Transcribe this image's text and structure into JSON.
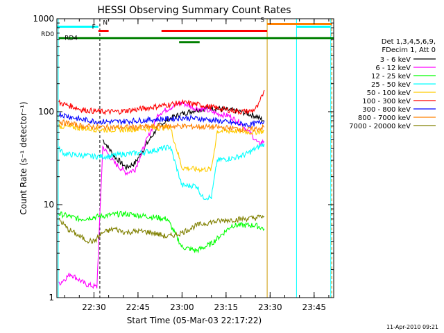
{
  "chart_data": {
    "type": "line",
    "title": "HESSI Observing Summary Count Rates",
    "xlabel": "Start Time (05-Mar-03 22:17:22)",
    "ylabel": "Count Rate (s⁻¹ detector⁻¹)",
    "yscale": "log",
    "ylim": [
      1,
      1000
    ],
    "xlim": [
      "22:17:22",
      "23:51:40"
    ],
    "x_ticks": [
      "22:30",
      "22:45",
      "23:00",
      "23:15",
      "23:30",
      "23:45"
    ],
    "y_ticks": [
      "1",
      "10",
      "100",
      "1000"
    ],
    "legend": {
      "header": [
        "Det 1,3,4,5,6,9,",
        "FDecim 1, Att 0"
      ],
      "placement": "right"
    },
    "series": [
      {
        "name": "3 - 6 keV",
        "color": "#000000",
        "points": [
          [
            "22:33:00",
            50
          ],
          [
            "22:37:00",
            33
          ],
          [
            "22:41:00",
            25
          ],
          [
            "22:44:00",
            28
          ],
          [
            "22:48:00",
            45
          ],
          [
            "22:52:00",
            70
          ],
          [
            "22:56:00",
            85
          ],
          [
            "23:00:00",
            95
          ],
          [
            "23:05:00",
            105
          ],
          [
            "23:10:00",
            110
          ],
          [
            "23:15:00",
            105
          ],
          [
            "23:20:00",
            100
          ],
          [
            "23:25:00",
            90
          ],
          [
            "23:28:00",
            80
          ]
        ]
      },
      {
        "name": "6 - 12 keV",
        "color": "#ff00ff",
        "points": [
          [
            "22:18:00",
            1.4
          ],
          [
            "22:22:00",
            1.8
          ],
          [
            "22:27:00",
            1.4
          ],
          [
            "22:31:00",
            1.3
          ],
          [
            "22:33:00",
            42
          ],
          [
            "22:37:00",
            28
          ],
          [
            "22:41:00",
            22
          ],
          [
            "22:44:00",
            24
          ],
          [
            "22:48:00",
            50
          ],
          [
            "22:52:00",
            95
          ],
          [
            "22:57:00",
            115
          ],
          [
            "23:00:00",
            125
          ],
          [
            "23:04:00",
            110
          ],
          [
            "23:08:00",
            105
          ],
          [
            "23:12:00",
            95
          ],
          [
            "23:16:00",
            90
          ],
          [
            "23:20:00",
            75
          ],
          [
            "23:24:00",
            55
          ],
          [
            "23:26:00",
            45
          ],
          [
            "23:28:00",
            48
          ]
        ]
      },
      {
        "name": "12 - 25 keV",
        "color": "#00ff00",
        "points": [
          [
            "22:18:00",
            8
          ],
          [
            "22:25:00",
            7
          ],
          [
            "22:32:00",
            7.5
          ],
          [
            "22:40:00",
            8
          ],
          [
            "22:48:00",
            7.5
          ],
          [
            "22:55:00",
            7
          ],
          [
            "23:00:00",
            3.5
          ],
          [
            "23:05:00",
            3.2
          ],
          [
            "23:10:00",
            3.8
          ],
          [
            "23:17:00",
            6
          ],
          [
            "23:25:00",
            6
          ],
          [
            "23:28:00",
            5.5
          ]
        ]
      },
      {
        "name": "25 - 50 keV",
        "color": "#00ffff",
        "points": [
          [
            "22:18:00",
            40
          ],
          [
            "22:20:00",
            35
          ],
          [
            "22:25:00",
            34
          ],
          [
            "22:30:00",
            33
          ],
          [
            "22:35:00",
            33
          ],
          [
            "22:40:00",
            35
          ],
          [
            "22:45:00",
            36
          ],
          [
            "22:50:00",
            38
          ],
          [
            "22:56:00",
            42
          ],
          [
            "23:00:00",
            16
          ],
          [
            "23:05:00",
            16
          ],
          [
            "23:07:00",
            12
          ],
          [
            "23:10:00",
            12
          ],
          [
            "23:12:00",
            30
          ],
          [
            "23:18:00",
            32
          ],
          [
            "23:22:00",
            35
          ],
          [
            "23:25:00",
            40
          ],
          [
            "23:28:00",
            45
          ]
        ]
      },
      {
        "name": "50 - 100 keV",
        "color": "#ffcc00",
        "points": [
          [
            "22:18:00",
            70
          ],
          [
            "22:25:00",
            67
          ],
          [
            "22:32:00",
            64
          ],
          [
            "22:40:00",
            64
          ],
          [
            "22:48:00",
            66
          ],
          [
            "22:56:00",
            68
          ],
          [
            "23:00:00",
            25
          ],
          [
            "23:05:00",
            24
          ],
          [
            "23:10:00",
            24
          ],
          [
            "23:12:00",
            62
          ],
          [
            "23:18:00",
            62
          ],
          [
            "23:24:00",
            60
          ],
          [
            "23:28:00",
            62
          ]
        ]
      },
      {
        "name": "100 - 300 keV",
        "color": "#ff0000",
        "points": [
          [
            "22:18:00",
            125
          ],
          [
            "22:22:00",
            115
          ],
          [
            "22:26:00",
            105
          ],
          [
            "22:32:00",
            100
          ],
          [
            "22:38:00",
            100
          ],
          [
            "22:44:00",
            105
          ],
          [
            "22:50:00",
            112
          ],
          [
            "22:56:00",
            120
          ],
          [
            "23:00:00",
            125
          ],
          [
            "23:05:00",
            120
          ],
          [
            "23:10:00",
            112
          ],
          [
            "23:15:00",
            105
          ],
          [
            "23:20:00",
            100
          ],
          [
            "23:24:00",
            102
          ],
          [
            "23:26:00",
            115
          ],
          [
            "23:28:00",
            170
          ]
        ]
      },
      {
        "name": "300 - 800 keV",
        "color": "#0000ff",
        "points": [
          [
            "22:18:00",
            95
          ],
          [
            "22:22:00",
            88
          ],
          [
            "22:26:00",
            82
          ],
          [
            "22:32:00",
            78
          ],
          [
            "22:38:00",
            78
          ],
          [
            "22:44:00",
            80
          ],
          [
            "22:50:00",
            82
          ],
          [
            "22:56:00",
            84
          ],
          [
            "23:00:00",
            86
          ],
          [
            "23:06:00",
            84
          ],
          [
            "23:12:00",
            80
          ],
          [
            "23:18:00",
            75
          ],
          [
            "23:23:00",
            72
          ],
          [
            "23:26:00",
            76
          ],
          [
            "23:28:00",
            80
          ]
        ]
      },
      {
        "name": "800 - 7000 keV",
        "color": "#ff8000",
        "points": [
          [
            "22:18:00",
            78
          ],
          [
            "22:22:00",
            74
          ],
          [
            "22:26:00",
            70
          ],
          [
            "22:32:00",
            68
          ],
          [
            "22:38:00",
            68
          ],
          [
            "22:44:00",
            68
          ],
          [
            "22:50:00",
            69
          ],
          [
            "22:56:00",
            70
          ],
          [
            "23:00:00",
            70
          ],
          [
            "23:06:00",
            69
          ],
          [
            "23:12:00",
            68
          ],
          [
            "23:18:00",
            66
          ],
          [
            "23:23:00",
            64
          ],
          [
            "23:26:00",
            66
          ],
          [
            "23:28:00",
            68
          ]
        ]
      },
      {
        "name": "7000 - 20000 keV",
        "color": "#808000",
        "points": [
          [
            "22:18:00",
            7
          ],
          [
            "22:21:00",
            5.5
          ],
          [
            "22:24:00",
            4.8
          ],
          [
            "22:27:00",
            4.2
          ],
          [
            "22:30:00",
            4.0
          ],
          [
            "22:33:00",
            5
          ],
          [
            "22:37:00",
            5.5
          ],
          [
            "22:41:00",
            5
          ],
          [
            "22:45:00",
            5.2
          ],
          [
            "22:50:00",
            5
          ],
          [
            "22:55:00",
            4.5
          ],
          [
            "23:00:00",
            5
          ],
          [
            "23:05:00",
            6
          ],
          [
            "23:10:00",
            6.5
          ],
          [
            "23:15:00",
            6.8
          ],
          [
            "23:20:00",
            7
          ],
          [
            "23:25:00",
            7.2
          ],
          [
            "23:28:00",
            7.5
          ]
        ]
      }
    ],
    "flag_bars": [
      {
        "label": "N",
        "color": "#00ffff",
        "level": 820,
        "segments": [
          [
            "22:17:22",
            "22:31:30"
          ],
          [
            "23:39:00",
            "23:50:30"
          ]
        ]
      },
      {
        "label": "F",
        "color": "#ff0000",
        "level": 740,
        "segments": [
          [
            "22:31:30",
            "22:35:00"
          ],
          [
            "22:53:00",
            "23:29:00"
          ]
        ]
      },
      {
        "label": "S",
        "color": "#ff8000",
        "level": 880,
        "segments": [
          [
            "23:29:00",
            "23:51:00"
          ]
        ]
      },
      {
        "label": "RD0",
        "color": "#008000",
        "level": 620,
        "segments": [
          [
            "22:18:00",
            "23:51:40"
          ]
        ]
      },
      {
        "label": "RD4",
        "color": "#008000",
        "level": 560,
        "segments": [
          [
            "22:59:00",
            "23:06:00"
          ]
        ]
      }
    ],
    "vertical_lines": [
      {
        "x": "22:32:00",
        "color": "#000000"
      },
      {
        "x": "23:29:00",
        "color": "#cc9900"
      },
      {
        "x": "23:39:00",
        "color": "#00ffff"
      },
      {
        "x": "23:50:40",
        "color": "#00ffff"
      },
      {
        "x": "23:51:00",
        "color": "#ff8000"
      },
      {
        "x": "22:17:50",
        "color": "#00ffff"
      }
    ],
    "footer": "11-Apr-2010 09:21"
  }
}
